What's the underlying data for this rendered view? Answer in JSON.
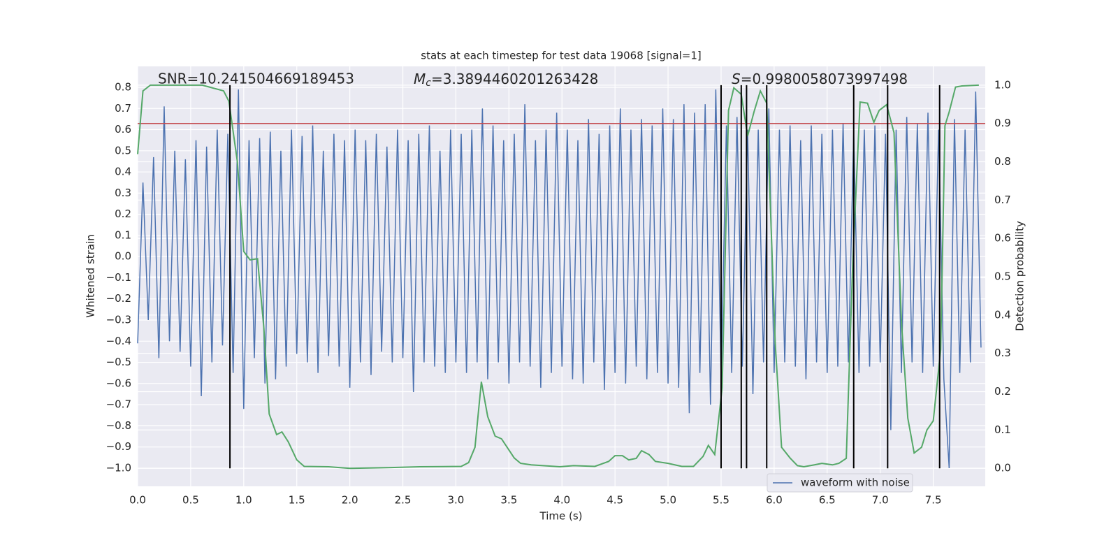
{
  "chart_data": {
    "type": "line",
    "title": "stats at each timestep for test data 19068 [signal=1]",
    "xlabel": "Time (s)",
    "ylabel": "Whitened strain",
    "y2label": "Detection probability",
    "annotations": [
      {
        "text": "SNR=10.241504669189453"
      },
      {
        "symbol": "M",
        "subscript": "c",
        "text": "=3.3894460201263428"
      },
      {
        "symbol": "S",
        "text": "=0.9980058073997498"
      }
    ],
    "xlim": [
      0,
      7.99
    ],
    "xticks": [
      {
        "value": 0,
        "label": "0.0"
      },
      {
        "value": 0.5,
        "label": "0.5"
      },
      {
        "value": 1,
        "label": "1.0"
      },
      {
        "value": 1.5,
        "label": "1.5"
      },
      {
        "value": 2,
        "label": "2.0"
      },
      {
        "value": 2.5,
        "label": "2.5"
      },
      {
        "value": 3,
        "label": "3.0"
      },
      {
        "value": 3.5,
        "label": "3.5"
      },
      {
        "value": 4,
        "label": "4.0"
      },
      {
        "value": 4.5,
        "label": "4.5"
      },
      {
        "value": 5,
        "label": "5.0"
      },
      {
        "value": 5.5,
        "label": "5.5"
      },
      {
        "value": 6,
        "label": "6.0"
      },
      {
        "value": 6.5,
        "label": "6.5"
      },
      {
        "value": 7,
        "label": "7.0"
      },
      {
        "value": 7.5,
        "label": "7.5"
      }
    ],
    "ylim": [
      -1.086,
      0.899
    ],
    "yticks": [
      {
        "value": -1,
        "label": "−1.0"
      },
      {
        "value": -0.9,
        "label": "−0.9"
      },
      {
        "value": -0.8,
        "label": "−0.8"
      },
      {
        "value": -0.7,
        "label": "−0.7"
      },
      {
        "value": -0.6,
        "label": "−0.6"
      },
      {
        "value": -0.5,
        "label": "−0.5"
      },
      {
        "value": -0.4,
        "label": "−0.4"
      },
      {
        "value": -0.3,
        "label": "−0.3"
      },
      {
        "value": -0.2,
        "label": "−0.2"
      },
      {
        "value": -0.1,
        "label": "−0.1"
      },
      {
        "value": 0,
        "label": "0.0"
      },
      {
        "value": 0.1,
        "label": "0.1"
      },
      {
        "value": 0.2,
        "label": "0.2"
      },
      {
        "value": 0.3,
        "label": "0.3"
      },
      {
        "value": 0.4,
        "label": "0.4"
      },
      {
        "value": 0.5,
        "label": "0.5"
      },
      {
        "value": 0.6,
        "label": "0.6"
      },
      {
        "value": 0.7,
        "label": "0.7"
      },
      {
        "value": 0.8,
        "label": "0.8"
      }
    ],
    "y2lim": [
      -0.047,
      1.049
    ],
    "y2ticks": [
      {
        "value": 0,
        "label": "0.0"
      },
      {
        "value": 0.1,
        "label": "0.1"
      },
      {
        "value": 0.2,
        "label": "0.2"
      },
      {
        "value": 0.3,
        "label": "0.3"
      },
      {
        "value": 0.4,
        "label": "0.4"
      },
      {
        "value": 0.5,
        "label": "0.5"
      },
      {
        "value": 0.6,
        "label": "0.6"
      },
      {
        "value": 0.7,
        "label": "0.7"
      },
      {
        "value": 0.8,
        "label": "0.8"
      },
      {
        "value": 0.9,
        "label": "0.9"
      },
      {
        "value": 1,
        "label": "1.0"
      }
    ],
    "grid": true,
    "legend": "lower right",
    "series": [
      {
        "name": "waveform with noise",
        "color": "#4c72b0",
        "x": [
          0,
          0.05,
          0.1,
          0.15,
          0.2,
          0.25,
          0.3,
          0.35,
          0.4,
          0.45,
          0.5,
          0.55,
          0.6,
          0.65,
          0.7,
          0.75,
          0.8,
          0.85,
          0.9,
          0.95,
          1,
          1.05,
          1.1,
          1.15,
          1.2,
          1.25,
          1.3,
          1.35,
          1.4,
          1.45,
          1.5,
          1.55,
          1.6,
          1.65,
          1.7,
          1.75,
          1.8,
          1.85,
          1.9,
          1.95,
          2,
          2.05,
          2.1,
          2.15,
          2.2,
          2.25,
          2.3,
          2.35,
          2.4,
          2.45,
          2.5,
          2.55,
          2.6,
          2.65,
          2.7,
          2.75,
          2.8,
          2.85,
          2.9,
          2.95,
          3,
          3.05,
          3.1,
          3.15,
          3.2,
          3.25,
          3.3,
          3.35,
          3.4,
          3.45,
          3.5,
          3.55,
          3.6,
          3.65,
          3.7,
          3.75,
          3.8,
          3.85,
          3.9,
          3.95,
          4,
          4.05,
          4.1,
          4.15,
          4.2,
          4.25,
          4.3,
          4.35,
          4.4,
          4.45,
          4.5,
          4.55,
          4.6,
          4.65,
          4.7,
          4.75,
          4.8,
          4.85,
          4.9,
          4.95,
          5,
          5.05,
          5.1,
          5.15,
          5.2,
          5.25,
          5.3,
          5.35,
          5.4,
          5.45,
          5.5,
          5.55,
          5.6,
          5.65,
          5.7,
          5.75,
          5.8,
          5.85,
          5.9,
          5.95,
          6,
          6.05,
          6.1,
          6.15,
          6.2,
          6.25,
          6.3,
          6.35,
          6.4,
          6.45,
          6.5,
          6.55,
          6.6,
          6.65,
          6.7,
          6.75,
          6.8,
          6.85,
          6.9,
          6.95,
          7,
          7.05,
          7.1,
          7.15,
          7.2,
          7.25,
          7.3,
          7.35,
          7.4,
          7.45,
          7.5,
          7.55,
          7.6,
          7.65,
          7.7,
          7.75,
          7.8,
          7.85,
          7.9,
          7.95
        ],
        "values": [
          -0.41,
          0.35,
          -0.3,
          0.47,
          -0.48,
          0.71,
          -0.4,
          0.5,
          -0.45,
          0.46,
          -0.52,
          0.55,
          -0.66,
          0.52,
          -0.5,
          0.6,
          -0.42,
          0.58,
          -0.55,
          0.79,
          -0.72,
          0.55,
          -0.48,
          0.56,
          -0.6,
          0.59,
          -0.58,
          0.5,
          -0.52,
          0.6,
          -0.46,
          0.57,
          -0.5,
          0.62,
          -0.55,
          0.5,
          -0.47,
          0.58,
          -0.52,
          0.55,
          -0.62,
          0.6,
          -0.5,
          0.55,
          -0.56,
          0.58,
          -0.45,
          0.52,
          -0.5,
          0.6,
          -0.48,
          0.55,
          -0.64,
          0.58,
          -0.5,
          0.62,
          -0.52,
          0.5,
          -0.55,
          0.6,
          -0.5,
          0.58,
          -0.55,
          0.6,
          -0.5,
          0.7,
          -0.58,
          0.62,
          -0.5,
          0.55,
          -0.6,
          0.58,
          -0.5,
          0.72,
          -0.52,
          0.55,
          -0.62,
          0.6,
          -0.55,
          0.68,
          -0.52,
          0.6,
          -0.58,
          0.55,
          -0.6,
          0.65,
          -0.5,
          0.58,
          -0.63,
          0.62,
          -0.55,
          0.7,
          -0.6,
          0.6,
          -0.52,
          0.65,
          -0.58,
          0.62,
          -0.55,
          0.7,
          -0.6,
          0.65,
          -0.62,
          0.72,
          -0.74,
          0.68,
          -0.55,
          0.72,
          -0.7,
          0.79,
          -0.58,
          0.62,
          -0.55,
          0.66,
          -0.52,
          0.6,
          -0.65,
          0.6,
          -0.5,
          0.7,
          -0.55,
          0.6,
          -0.5,
          0.62,
          -0.52,
          0.55,
          -0.58,
          0.62,
          -0.5,
          0.58,
          -0.55,
          0.6,
          -0.52,
          0.63,
          -0.5,
          0.58,
          -0.55,
          0.6,
          -0.52,
          0.62,
          -0.5,
          0.58,
          -0.82,
          0.6,
          -0.55,
          0.66,
          -0.5,
          0.63,
          -0.55,
          0.68,
          -0.52,
          0.6,
          -0.58,
          -1.0,
          0.65,
          -0.55,
          0.6,
          -0.5,
          0.78,
          -0.43
        ]
      },
      {
        "color": "#55a868",
        "axis": "y2",
        "x": [
          0,
          0.05,
          0.12,
          0.61,
          0.81,
          0.86,
          0.94,
          1.0,
          1.06,
          1.13,
          1.19,
          1.24,
          1.31,
          1.36,
          1.42,
          1.5,
          1.57,
          1.8,
          2.0,
          2.39,
          2.66,
          3.05,
          3.12,
          3.18,
          3.24,
          3.3,
          3.37,
          3.43,
          3.55,
          3.61,
          3.71,
          3.98,
          4.11,
          4.31,
          4.44,
          4.5,
          4.57,
          4.63,
          4.7,
          4.75,
          4.82,
          4.88,
          5.0,
          5.13,
          5.24,
          5.33,
          5.38,
          5.44,
          5.51,
          5.57,
          5.62,
          5.69,
          5.75,
          5.81,
          5.87,
          5.93,
          6.01,
          6.07,
          6.15,
          6.22,
          6.28,
          6.38,
          6.45,
          6.55,
          6.61,
          6.68,
          6.74,
          6.81,
          6.88,
          6.94,
          6.99,
          7.06,
          7.13,
          7.2,
          7.26,
          7.32,
          7.39,
          7.44,
          7.5,
          7.57,
          7.61,
          7.65,
          7.71,
          7.77,
          7.93
        ],
        "values": [
          0.82,
          0.985,
          1.0,
          1.0,
          0.985,
          0.958,
          0.8,
          0.566,
          0.544,
          0.547,
          0.365,
          0.142,
          0.088,
          0.095,
          0.069,
          0.022,
          0.005,
          0.004,
          0.0,
          0.002,
          0.004,
          0.005,
          0.015,
          0.055,
          0.226,
          0.135,
          0.084,
          0.077,
          0.027,
          0.013,
          0.009,
          0.004,
          0.007,
          0.005,
          0.018,
          0.033,
          0.033,
          0.022,
          0.026,
          0.046,
          0.036,
          0.018,
          0.013,
          0.005,
          0.005,
          0.031,
          0.06,
          0.036,
          0.21,
          0.934,
          0.993,
          0.976,
          0.867,
          0.93,
          0.985,
          0.953,
          0.328,
          0.055,
          0.027,
          0.007,
          0.004,
          0.009,
          0.013,
          0.009,
          0.013,
          0.026,
          0.529,
          0.956,
          0.953,
          0.903,
          0.934,
          0.949,
          0.876,
          0.383,
          0.131,
          0.04,
          0.055,
          0.1,
          0.124,
          0.31,
          0.894,
          0.93,
          0.995,
          0.998,
          1.0
        ]
      }
    ],
    "threshold": {
      "value": 0.9,
      "axis": "y2",
      "color": "#c44e52"
    },
    "vlines": {
      "x": [
        0.87,
        5.5,
        5.69,
        5.74,
        5.93,
        6.75,
        7.07,
        7.56
      ],
      "color": "#000000"
    }
  }
}
